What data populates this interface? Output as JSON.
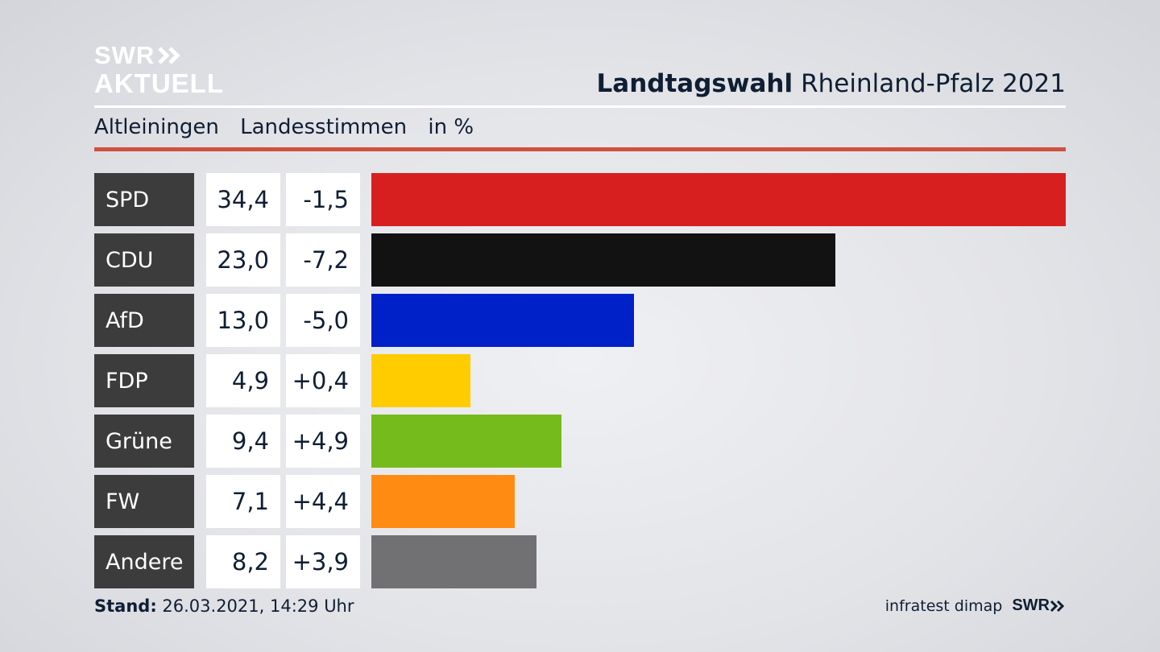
{
  "brand": {
    "logo_line1": "SWR",
    "logo_line2": "AKTUELL"
  },
  "header": {
    "title_bold": "Landtagswahl",
    "title_rest": "Rheinland-Pfalz 2021"
  },
  "subtitle": {
    "place": "Altleiningen",
    "kind": "Landesstimmen",
    "unit": "in %"
  },
  "chart_data": {
    "type": "bar",
    "orientation": "horizontal",
    "categories": [
      "SPD",
      "CDU",
      "AfD",
      "FDP",
      "Grüne",
      "FW",
      "Andere"
    ],
    "values": [
      34.4,
      23.0,
      13.0,
      4.9,
      9.4,
      7.1,
      8.2
    ],
    "value_labels": [
      "34,4",
      "23,0",
      "13,0",
      "4,9",
      "9,4",
      "7,1",
      "8,2"
    ],
    "change_labels": [
      "-1,5",
      "-7,2",
      "-5,0",
      "+0,4",
      "+4,9",
      "+4,4",
      "+3,9"
    ],
    "changes": [
      -1.5,
      -7.2,
      -5.0,
      0.4,
      4.9,
      4.4,
      3.9
    ],
    "colors": [
      "#d71f1f",
      "#121212",
      "#0020c8",
      "#ffcc00",
      "#76bb1c",
      "#ff8b13",
      "#717174"
    ],
    "xlim": [
      0,
      34.4
    ],
    "grid": false,
    "legend": "none"
  },
  "footer": {
    "stand_label": "Stand:",
    "stand_value": "26.03.2021, 14:29 Uhr",
    "source": "infratest dimap",
    "brand": "SWR"
  }
}
